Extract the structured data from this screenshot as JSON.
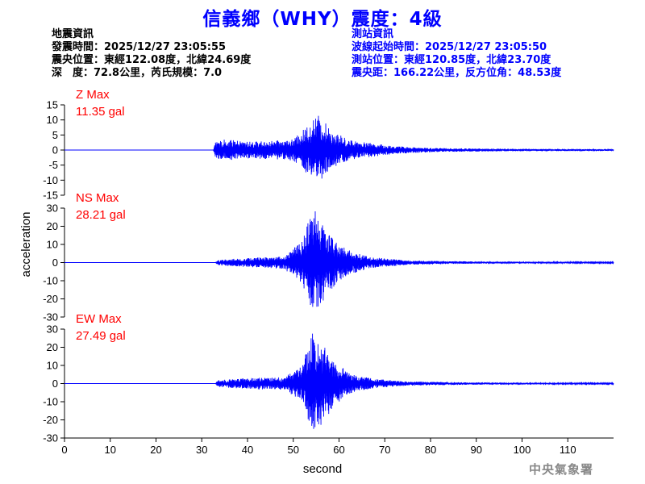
{
  "title": "信義鄉（WHY）震度：4級",
  "event_info": {
    "heading": "地震資訊",
    "time": "發震時間：2025/12/27 23:05:55",
    "location": "震央位置：東經122.08度，北緯24.69度",
    "depth_magnitude": "深　度：72.8公里，芮氏規模：7.0"
  },
  "station_info": {
    "heading": "測站資訊",
    "wave_start": "波線起始時間：2025/12/27 23:05:50",
    "location": "測站位置：東經120.85度，北緯23.70度",
    "distance_azimuth": "震央距：166.22公里，反方位角：48.53度"
  },
  "watermark": "中央氣象署",
  "colors": {
    "title": "#0000ff",
    "trace": "#0000ff",
    "max_label": "#ff0000",
    "axis": "#000000",
    "watermark": "#888888"
  },
  "chart_data": {
    "type": "line",
    "xlabel": "second",
    "ylabel": "acceleration",
    "xlim": [
      0,
      120
    ],
    "x_ticks": [
      0,
      10,
      20,
      30,
      40,
      50,
      60,
      70,
      80,
      90,
      100,
      110
    ],
    "channels": [
      {
        "label": "Z Max",
        "max_text": "11.35 gal",
        "peak": 11.35,
        "ylim": [
          -15,
          15
        ],
        "y_ticks": [
          15,
          10,
          5,
          0,
          -5,
          -10,
          -15
        ],
        "envelope": [
          [
            0,
            0
          ],
          [
            32.5,
            0
          ],
          [
            33,
            2.5
          ],
          [
            35,
            3.5
          ],
          [
            40,
            2.8
          ],
          [
            45,
            3.0
          ],
          [
            50,
            3.5
          ],
          [
            53,
            8
          ],
          [
            55,
            11.35
          ],
          [
            57,
            9
          ],
          [
            59,
            6
          ],
          [
            62,
            3.5
          ],
          [
            66,
            2.5
          ],
          [
            72,
            1.3
          ],
          [
            80,
            0.7
          ],
          [
            90,
            0.5
          ],
          [
            100,
            0.4
          ],
          [
            120,
            0.3
          ]
        ]
      },
      {
        "label": "NS Max",
        "max_text": "28.21 gal",
        "peak": 28.21,
        "ylim": [
          -30,
          30
        ],
        "y_ticks": [
          30,
          20,
          10,
          0,
          -10,
          -20,
          -30
        ],
        "envelope": [
          [
            0,
            0
          ],
          [
            33,
            0
          ],
          [
            33.5,
            1.5
          ],
          [
            40,
            2.5
          ],
          [
            48,
            3.5
          ],
          [
            52,
            12
          ],
          [
            54,
            28.21
          ],
          [
            56,
            24
          ],
          [
            58,
            16
          ],
          [
            60,
            10
          ],
          [
            63,
            6
          ],
          [
            67,
            3
          ],
          [
            75,
            1.2
          ],
          [
            90,
            0.6
          ],
          [
            120,
            0.3
          ]
        ]
      },
      {
        "label": "EW Max",
        "max_text": "27.49 gal",
        "peak": 27.49,
        "ylim": [
          -30,
          30
        ],
        "y_ticks": [
          30,
          20,
          10,
          0,
          -10,
          -20,
          -30
        ],
        "envelope": [
          [
            0,
            0
          ],
          [
            33,
            0
          ],
          [
            33.5,
            2
          ],
          [
            40,
            3
          ],
          [
            48,
            3.5
          ],
          [
            52,
            10
          ],
          [
            54,
            27.49
          ],
          [
            56,
            23
          ],
          [
            58,
            16
          ],
          [
            60,
            10
          ],
          [
            63,
            5
          ],
          [
            68,
            2.5
          ],
          [
            75,
            1.2
          ],
          [
            90,
            0.6
          ],
          [
            120,
            0.3
          ]
        ]
      }
    ]
  }
}
